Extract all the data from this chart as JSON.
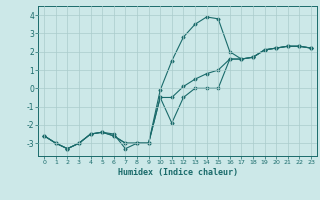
{
  "title": "",
  "xlabel": "Humidex (Indice chaleur)",
  "ylabel": "",
  "background_color": "#cce8e8",
  "line_color": "#1a6b6b",
  "grid_color": "#aacccc",
  "xlim": [
    -0.5,
    23.5
  ],
  "ylim": [
    -3.7,
    4.5
  ],
  "yticks": [
    -3,
    -2,
    -1,
    0,
    1,
    2,
    3,
    4
  ],
  "xticks": [
    0,
    1,
    2,
    3,
    4,
    5,
    6,
    7,
    8,
    9,
    10,
    11,
    12,
    13,
    14,
    15,
    16,
    17,
    18,
    19,
    20,
    21,
    22,
    23
  ],
  "line1_x": [
    0,
    1,
    2,
    3,
    4,
    5,
    6,
    7,
    8,
    9,
    10,
    11,
    12,
    13,
    14,
    15,
    16,
    17,
    18,
    19,
    20,
    21,
    22,
    23
  ],
  "line1_y": [
    -2.6,
    -3.0,
    -3.3,
    -3.0,
    -2.5,
    -2.4,
    -2.5,
    -3.3,
    -3.0,
    -3.0,
    -0.1,
    1.5,
    2.8,
    3.5,
    3.9,
    3.8,
    2.0,
    1.6,
    1.7,
    2.1,
    2.2,
    2.3,
    2.3,
    2.2
  ],
  "line2_x": [
    0,
    1,
    2,
    3,
    4,
    5,
    6,
    7,
    8,
    9,
    10,
    11,
    12,
    13,
    14,
    15,
    16,
    17,
    18,
    19,
    20,
    21,
    22,
    23
  ],
  "line2_y": [
    -2.6,
    -3.0,
    -3.3,
    -3.0,
    -2.5,
    -2.4,
    -2.6,
    -3.0,
    -3.0,
    -3.0,
    -0.5,
    -1.9,
    -0.5,
    0.0,
    0.0,
    0.0,
    1.6,
    1.6,
    1.7,
    2.1,
    2.2,
    2.3,
    2.3,
    2.2
  ],
  "line3_x": [
    0,
    1,
    2,
    3,
    4,
    5,
    6,
    7,
    8,
    9,
    10,
    11,
    12,
    13,
    14,
    15,
    16,
    17,
    18,
    19,
    20,
    21,
    22,
    23
  ],
  "line3_y": [
    -2.6,
    -3.0,
    -3.3,
    -3.0,
    -2.5,
    -2.4,
    -2.6,
    -3.0,
    -3.0,
    -3.0,
    -0.5,
    -0.5,
    0.1,
    0.5,
    0.8,
    1.0,
    1.6,
    1.6,
    1.7,
    2.1,
    2.2,
    2.3,
    2.3,
    2.2
  ]
}
